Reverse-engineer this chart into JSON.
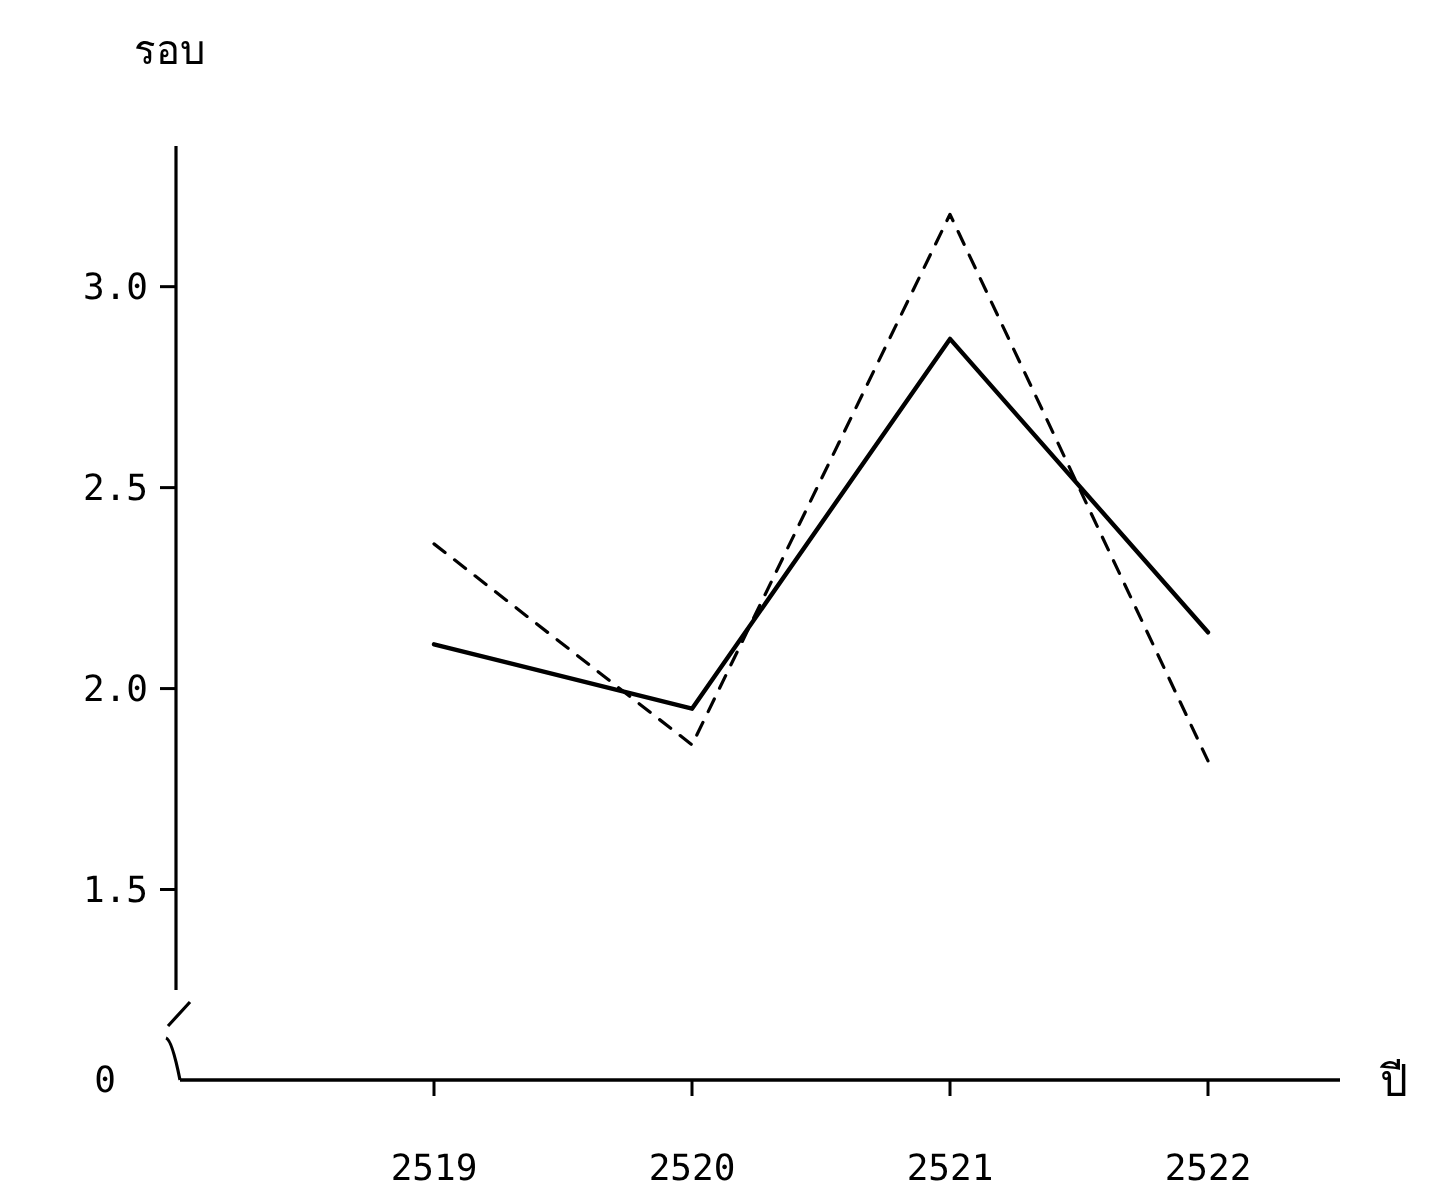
{
  "chart_data": {
    "type": "line",
    "ylabel": "รอบ",
    "xlabel": "ปี",
    "categories": [
      "2519",
      "2520",
      "2521",
      "2522"
    ],
    "series": [
      {
        "color": "#000000",
        "line_style": "solid",
        "values": [
          2.11,
          1.95,
          2.87,
          2.14
        ]
      },
      {
        "color": "#000000",
        "line_style": "dashed",
        "values": [
          2.36,
          1.86,
          3.18,
          1.82
        ]
      }
    ],
    "ylim": [
      1.25,
      3.35
    ],
    "yticks": [
      1.5,
      {
        "value": 2,
        "label": "2.0"
      },
      2.5,
      {
        "value": 3,
        "label": "3.0"
      }
    ],
    "grid": false,
    "annotations": [
      "0"
    ]
  }
}
